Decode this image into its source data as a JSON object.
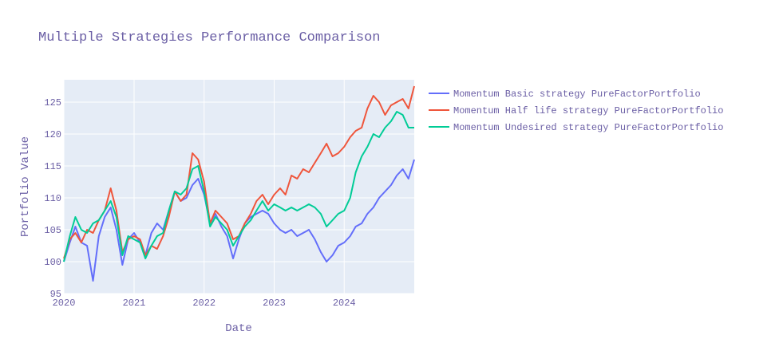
{
  "chart_data": {
    "type": "line",
    "title": "Multiple Strategies Performance Comparison",
    "xlabel": "Date",
    "ylabel": "Portfolio Value",
    "x_axis_type": "date",
    "xlim": [
      "2020-01-01",
      "2024-12-31"
    ],
    "ylim": [
      95,
      128.5
    ],
    "x_ticks": [
      "2020",
      "2021",
      "2022",
      "2023",
      "2024"
    ],
    "y_ticks": [
      95,
      100,
      105,
      110,
      115,
      120,
      125
    ],
    "grid": true,
    "legend_position": "right",
    "series": [
      {
        "name": "Momentum Basic strategy PureFactorPortfolio",
        "color": "#636efa",
        "points": [
          [
            "2020-01-01",
            100.0
          ],
          [
            "2020-02-01",
            103.0
          ],
          [
            "2020-03-01",
            105.5
          ],
          [
            "2020-04-01",
            103.0
          ],
          [
            "2020-05-01",
            102.5
          ],
          [
            "2020-06-01",
            97.0
          ],
          [
            "2020-07-01",
            104.0
          ],
          [
            "2020-08-01",
            107.0
          ],
          [
            "2020-09-01",
            108.5
          ],
          [
            "2020-10-01",
            105.0
          ],
          [
            "2020-11-01",
            99.5
          ],
          [
            "2020-12-01",
            103.5
          ],
          [
            "2021-01-01",
            104.5
          ],
          [
            "2021-02-01",
            103.0
          ],
          [
            "2021-03-01",
            101.0
          ],
          [
            "2021-04-01",
            104.5
          ],
          [
            "2021-05-01",
            106.0
          ],
          [
            "2021-06-01",
            105.0
          ],
          [
            "2021-07-01",
            108.0
          ],
          [
            "2021-08-01",
            111.0
          ],
          [
            "2021-09-01",
            109.5
          ],
          [
            "2021-10-01",
            110.0
          ],
          [
            "2021-11-01",
            112.0
          ],
          [
            "2021-12-01",
            113.0
          ],
          [
            "2022-01-01",
            110.5
          ],
          [
            "2022-02-01",
            106.0
          ],
          [
            "2022-03-01",
            107.5
          ],
          [
            "2022-04-01",
            105.5
          ],
          [
            "2022-05-01",
            104.0
          ],
          [
            "2022-06-01",
            100.5
          ],
          [
            "2022-07-01",
            103.5
          ],
          [
            "2022-08-01",
            106.0
          ],
          [
            "2022-09-01",
            107.0
          ],
          [
            "2022-10-01",
            107.5
          ],
          [
            "2022-11-01",
            108.0
          ],
          [
            "2022-12-01",
            107.5
          ],
          [
            "2023-01-01",
            106.0
          ],
          [
            "2023-02-01",
            105.0
          ],
          [
            "2023-03-01",
            104.5
          ],
          [
            "2023-04-01",
            105.0
          ],
          [
            "2023-05-01",
            104.0
          ],
          [
            "2023-06-01",
            104.5
          ],
          [
            "2023-07-01",
            105.0
          ],
          [
            "2023-08-01",
            103.5
          ],
          [
            "2023-09-01",
            101.5
          ],
          [
            "2023-10-01",
            100.0
          ],
          [
            "2023-11-01",
            101.0
          ],
          [
            "2023-12-01",
            102.5
          ],
          [
            "2024-01-01",
            103.0
          ],
          [
            "2024-02-01",
            104.0
          ],
          [
            "2024-03-01",
            105.5
          ],
          [
            "2024-04-01",
            106.0
          ],
          [
            "2024-05-01",
            107.5
          ],
          [
            "2024-06-01",
            108.5
          ],
          [
            "2024-07-01",
            110.0
          ],
          [
            "2024-08-01",
            111.0
          ],
          [
            "2024-09-01",
            112.0
          ],
          [
            "2024-10-01",
            113.5
          ],
          [
            "2024-11-01",
            114.5
          ],
          [
            "2024-12-01",
            113.0
          ],
          [
            "2024-12-31",
            116.0
          ]
        ]
      },
      {
        "name": "Momentum Half life strategy PureFactorPortfolio",
        "color": "#ef553b",
        "points": [
          [
            "2020-01-01",
            100.5
          ],
          [
            "2020-02-01",
            103.5
          ],
          [
            "2020-03-01",
            104.5
          ],
          [
            "2020-04-01",
            103.0
          ],
          [
            "2020-05-01",
            105.0
          ],
          [
            "2020-06-01",
            104.5
          ],
          [
            "2020-07-01",
            106.5
          ],
          [
            "2020-08-01",
            108.0
          ],
          [
            "2020-09-01",
            111.5
          ],
          [
            "2020-10-01",
            108.0
          ],
          [
            "2020-11-01",
            101.5
          ],
          [
            "2020-12-01",
            103.5
          ],
          [
            "2021-01-01",
            104.0
          ],
          [
            "2021-02-01",
            103.5
          ],
          [
            "2021-03-01",
            101.0
          ],
          [
            "2021-04-01",
            102.5
          ],
          [
            "2021-05-01",
            102.0
          ],
          [
            "2021-06-01",
            104.0
          ],
          [
            "2021-07-01",
            107.0
          ],
          [
            "2021-08-01",
            111.0
          ],
          [
            "2021-09-01",
            109.5
          ],
          [
            "2021-10-01",
            110.5
          ],
          [
            "2021-11-01",
            117.0
          ],
          [
            "2021-12-01",
            116.0
          ],
          [
            "2022-01-01",
            112.5
          ],
          [
            "2022-02-01",
            106.0
          ],
          [
            "2022-03-01",
            108.0
          ],
          [
            "2022-04-01",
            107.0
          ],
          [
            "2022-05-01",
            106.0
          ],
          [
            "2022-06-01",
            103.5
          ],
          [
            "2022-07-01",
            104.0
          ],
          [
            "2022-08-01",
            106.0
          ],
          [
            "2022-09-01",
            107.5
          ],
          [
            "2022-10-01",
            109.5
          ],
          [
            "2022-11-01",
            110.5
          ],
          [
            "2022-12-01",
            109.0
          ],
          [
            "2023-01-01",
            110.5
          ],
          [
            "2023-02-01",
            111.5
          ],
          [
            "2023-03-01",
            110.5
          ],
          [
            "2023-04-01",
            113.5
          ],
          [
            "2023-05-01",
            113.0
          ],
          [
            "2023-06-01",
            114.5
          ],
          [
            "2023-07-01",
            114.0
          ],
          [
            "2023-08-01",
            115.5
          ],
          [
            "2023-09-01",
            117.0
          ],
          [
            "2023-10-01",
            118.5
          ],
          [
            "2023-11-01",
            116.5
          ],
          [
            "2023-12-01",
            117.0
          ],
          [
            "2024-01-01",
            118.0
          ],
          [
            "2024-02-01",
            119.5
          ],
          [
            "2024-03-01",
            120.5
          ],
          [
            "2024-04-01",
            121.0
          ],
          [
            "2024-05-01",
            124.0
          ],
          [
            "2024-06-01",
            126.0
          ],
          [
            "2024-07-01",
            125.0
          ],
          [
            "2024-08-01",
            123.0
          ],
          [
            "2024-09-01",
            124.5
          ],
          [
            "2024-10-01",
            125.0
          ],
          [
            "2024-11-01",
            125.5
          ],
          [
            "2024-12-01",
            124.0
          ],
          [
            "2024-12-31",
            127.5
          ]
        ]
      },
      {
        "name": "Momentum Undesired strategy PureFactorPortfolio",
        "color": "#00cc96",
        "points": [
          [
            "2020-01-01",
            100.0
          ],
          [
            "2020-02-01",
            104.0
          ],
          [
            "2020-03-01",
            107.0
          ],
          [
            "2020-04-01",
            105.0
          ],
          [
            "2020-05-01",
            104.5
          ],
          [
            "2020-06-01",
            106.0
          ],
          [
            "2020-07-01",
            106.5
          ],
          [
            "2020-08-01",
            108.0
          ],
          [
            "2020-09-01",
            109.5
          ],
          [
            "2020-10-01",
            107.0
          ],
          [
            "2020-11-01",
            101.0
          ],
          [
            "2020-12-01",
            104.0
          ],
          [
            "2021-01-01",
            103.5
          ],
          [
            "2021-02-01",
            103.0
          ],
          [
            "2021-03-01",
            100.5
          ],
          [
            "2021-04-01",
            102.5
          ],
          [
            "2021-05-01",
            104.0
          ],
          [
            "2021-06-01",
            104.5
          ],
          [
            "2021-07-01",
            108.0
          ],
          [
            "2021-08-01",
            111.0
          ],
          [
            "2021-09-01",
            110.5
          ],
          [
            "2021-10-01",
            111.5
          ],
          [
            "2021-11-01",
            114.5
          ],
          [
            "2021-12-01",
            115.0
          ],
          [
            "2022-01-01",
            111.0
          ],
          [
            "2022-02-01",
            105.5
          ],
          [
            "2022-03-01",
            107.0
          ],
          [
            "2022-04-01",
            106.0
          ],
          [
            "2022-05-01",
            105.0
          ],
          [
            "2022-06-01",
            102.5
          ],
          [
            "2022-07-01",
            104.0
          ],
          [
            "2022-08-01",
            105.5
          ],
          [
            "2022-09-01",
            106.5
          ],
          [
            "2022-10-01",
            108.0
          ],
          [
            "2022-11-01",
            109.5
          ],
          [
            "2022-12-01",
            108.0
          ],
          [
            "2023-01-01",
            109.0
          ],
          [
            "2023-02-01",
            108.5
          ],
          [
            "2023-03-01",
            108.0
          ],
          [
            "2023-04-01",
            108.5
          ],
          [
            "2023-05-01",
            108.0
          ],
          [
            "2023-06-01",
            108.5
          ],
          [
            "2023-07-01",
            109.0
          ],
          [
            "2023-08-01",
            108.5
          ],
          [
            "2023-09-01",
            107.5
          ],
          [
            "2023-10-01",
            105.5
          ],
          [
            "2023-11-01",
            106.5
          ],
          [
            "2023-12-01",
            107.5
          ],
          [
            "2024-01-01",
            108.0
          ],
          [
            "2024-02-01",
            110.0
          ],
          [
            "2024-03-01",
            114.0
          ],
          [
            "2024-04-01",
            116.5
          ],
          [
            "2024-05-01",
            118.0
          ],
          [
            "2024-06-01",
            120.0
          ],
          [
            "2024-07-01",
            119.5
          ],
          [
            "2024-08-01",
            121.0
          ],
          [
            "2024-09-01",
            122.0
          ],
          [
            "2024-10-01",
            123.5
          ],
          [
            "2024-11-01",
            123.0
          ],
          [
            "2024-12-01",
            121.0
          ],
          [
            "2024-12-31",
            121.0
          ]
        ]
      }
    ]
  }
}
